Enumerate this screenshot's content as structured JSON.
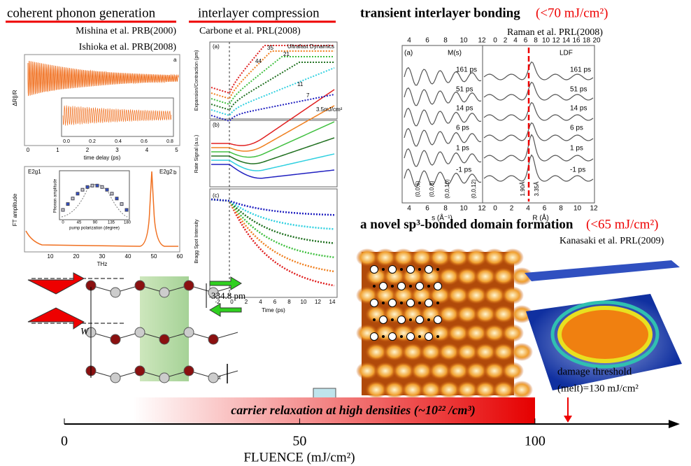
{
  "phonon": {
    "title": "coherent phonon generation",
    "refs": [
      "Mishina et al. PRB(2000)",
      "Ishioka et al. PRB(2008)"
    ],
    "top_plot": {
      "y_label": "ΔR∥/R",
      "x_label": "time delay (ps)",
      "x_ticks": [
        "0",
        "1",
        "2",
        "3",
        "4",
        "5"
      ],
      "inset_ticks": [
        "0.0",
        "0.2",
        "0.4",
        "0.6",
        "0.8"
      ],
      "tag": "a"
    },
    "bottom_plot": {
      "y_label": "FT amplitude",
      "x_label": "THz",
      "x_ticks": [
        "10",
        "20",
        "30",
        "40",
        "50",
        "60"
      ],
      "tag": "b",
      "peaks": [
        "E2g1",
        "E2g2"
      ],
      "inset_x_label": "pump polarization (degree)",
      "inset_y_label": "Phonon amplitude",
      "inset_x_ticks": [
        "0",
        "45",
        "90",
        "135",
        "180"
      ]
    }
  },
  "compression": {
    "title": "interlayer compression",
    "ref": "Carbone et al. PRL(2008)",
    "header": "Ultrafast Dynamics",
    "tags": [
      "(a)",
      "(b)",
      "(c)"
    ],
    "y_labels": [
      "Expansion/Contraction (pm)",
      "Rate Signal (a.u.)",
      "Bragg Spot Intensity"
    ],
    "x_label": "Time (ps)",
    "x_ticks": [
      "-2",
      "0",
      "2",
      "4",
      "6",
      "8",
      "10",
      "12",
      "14"
    ],
    "fluences": [
      "44",
      "35",
      "21",
      "11",
      "7",
      "3.5mJ/cm²"
    ]
  },
  "bonding": {
    "title": "transient interlayer bonding",
    "condition": "(<70 mJ/cm²)",
    "ref": "Raman et al. PRL(2008)",
    "tag": "(a)",
    "left_label": "M(s)",
    "right_label": "LDF",
    "delays": [
      "161 ps",
      "51 ps",
      "14 ps",
      "6 ps",
      "1 ps",
      "-1 ps"
    ],
    "top_ticks_left": [
      "4",
      "6",
      "8",
      "10",
      "12"
    ],
    "top_ticks_right": [
      "0",
      "2",
      "4",
      "6",
      "8",
      "10",
      "12",
      "14",
      "16",
      "18",
      "20"
    ],
    "bottom_ticks_left": [
      "4",
      "6",
      "8",
      "10",
      "12"
    ],
    "bottom_ticks_right": [
      "0",
      "2",
      "4",
      "6",
      "8",
      "10",
      "12"
    ],
    "x_label_left": "s (Å⁻¹)",
    "x_label_right": "R (Å)",
    "peaks": [
      "(0,0,6)",
      "(0,0,8)",
      "(0,0,10)",
      "(0,0,12)"
    ],
    "distances": [
      "1.90Å",
      "3.35Å"
    ]
  },
  "sp3": {
    "title": "a novel sp³-bonded domain formation",
    "condition": "(<65 mJ/cm²)",
    "ref": "Kanasaki et al. PRL(2009)"
  },
  "structure": {
    "w_label": "W",
    "spacing": "334.8 pm",
    "z_label": "z"
  },
  "relaxation": "carrier relaxation at high densities (~10²² /cm³)",
  "damage": {
    "line1": "damage threshold",
    "line2": "(melt)=130 mJ/cm²"
  },
  "fluence_axis": {
    "label": "FLUENCE  (mJ/cm²)",
    "xlim": [
      0,
      129
    ],
    "ticks": [
      0,
      50,
      100
    ]
  }
}
